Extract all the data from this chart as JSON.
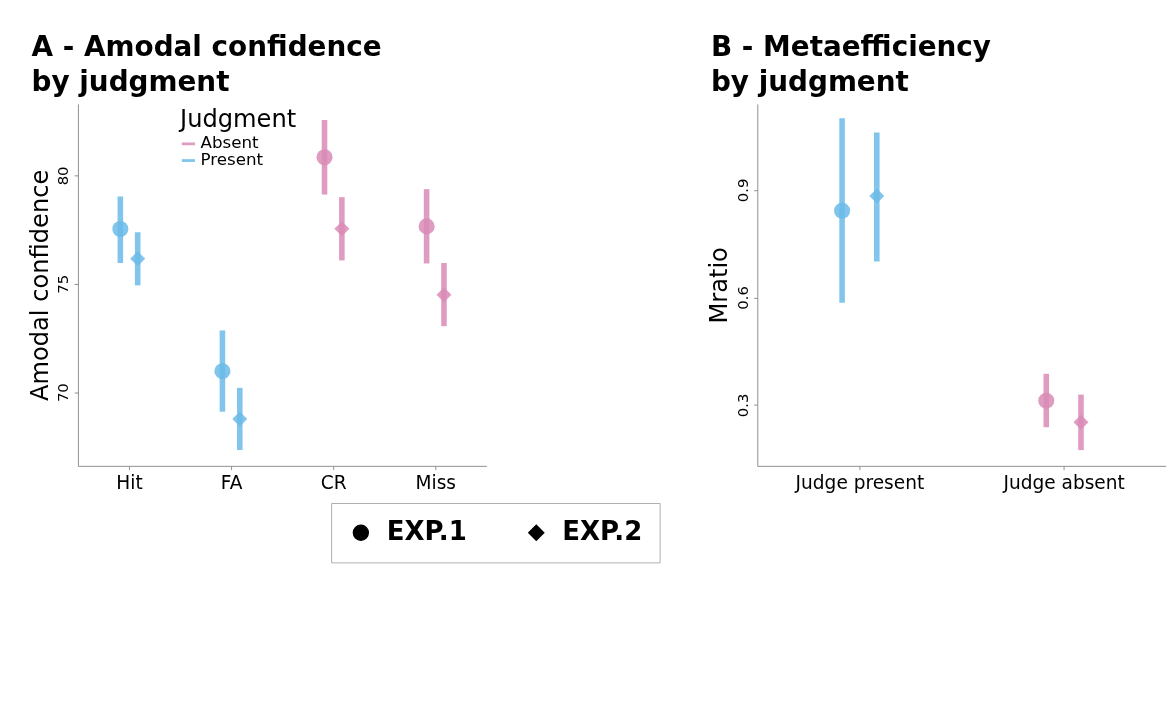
{
  "chart_data": [
    {
      "type": "scatter",
      "title": "A - Amodal confidence\nby judgment",
      "ylabel": "Amodal confidence",
      "legend_title": "Judgment",
      "legend": "top left",
      "grid": false,
      "categories": [
        "Hit",
        "FA",
        "CR",
        "Miss"
      ],
      "ylim": [
        66.6,
        83.3
      ],
      "yticks": [
        70,
        75,
        80
      ],
      "series": [
        {
          "name": "Absent",
          "color": "#d98bb6",
          "marker": "circle",
          "values": [
            null,
            null,
            80.84,
            77.65
          ],
          "errors": [
            null,
            null,
            [
              79.12,
              82.56
            ],
            [
              75.94,
              79.37
            ]
          ]
        },
        {
          "color": "#d98bb6",
          "marker": "diamond",
          "values": [
            null,
            null,
            77.54,
            74.5
          ],
          "errors": [
            null,
            null,
            [
              76.08,
              79.0
            ],
            [
              73.05,
              75.96
            ]
          ]
        },
        {
          "name": "Present",
          "color": "#6bbbe9",
          "marker": "circle",
          "values": [
            77.53,
            70.97,
            null,
            null
          ],
          "errors": [
            [
              75.96,
              79.03
            ],
            [
              69.1,
              72.85
            ],
            null,
            null
          ]
        },
        {
          "color": "#6bbbe9",
          "marker": "diamond",
          "values": [
            76.16,
            68.76,
            null,
            null
          ],
          "errors": [
            [
              74.93,
              77.38
            ],
            [
              67.33,
              70.2
            ],
            null,
            null
          ]
        }
      ]
    },
    {
      "type": "scatter",
      "title": "B - Metaefficiency\nby judgment",
      "ylabel": "Mratio",
      "legend": false,
      "grid": false,
      "categories": [
        "Judge present",
        "Judge absent"
      ],
      "ylim": [
        0.13,
        1.14
      ],
      "yticks": [
        0.3,
        0.6,
        0.9
      ],
      "series": [
        {
          "color": "#6bbbe9",
          "marker": "circle",
          "values": [
            0.842,
            null
          ],
          "errors": [
            [
              0.585,
              1.1
            ],
            null
          ]
        },
        {
          "color": "#6bbbe9",
          "marker": "diamond",
          "values": [
            0.883,
            null
          ],
          "errors": [
            [
              0.7,
              1.06
            ],
            null
          ]
        },
        {
          "color": "#d98bb6",
          "marker": "circle",
          "values": [
            null,
            0.312
          ],
          "errors": [
            null,
            [
              0.238,
              0.387
            ]
          ]
        },
        {
          "color": "#d98bb6",
          "marker": "diamond",
          "values": [
            null,
            0.252
          ],
          "errors": [
            null,
            [
              0.174,
              0.329
            ]
          ]
        }
      ]
    },
    {
      "type": "other",
      "annotations": [
        "EXP.1",
        "EXP.2"
      ]
    }
  ]
}
